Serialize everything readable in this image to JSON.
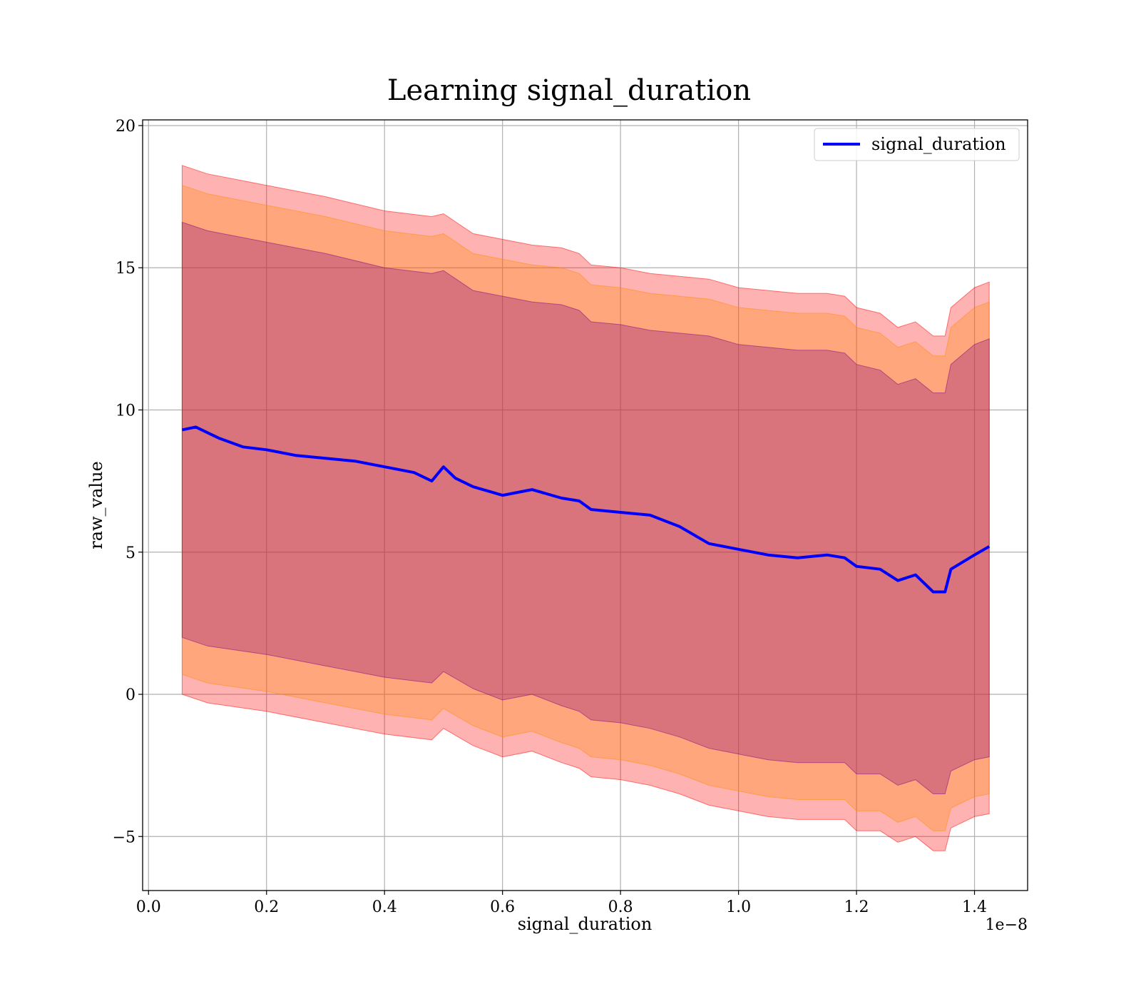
{
  "chart_data": {
    "type": "line",
    "title": "Learning signal_duration",
    "xlabel": "signal_duration",
    "ylabel": "raw_value",
    "x_offset_label": "1e−8",
    "xlim": [
      -0.01,
      1.49
    ],
    "ylim": [
      -6.9,
      20.2
    ],
    "xticks": [
      0.0,
      0.2,
      0.4,
      0.6,
      0.8,
      1.0,
      1.2,
      1.4
    ],
    "xtick_labels": [
      "0.0",
      "0.2",
      "0.4",
      "0.6",
      "0.8",
      "1.0",
      "1.2",
      "1.4"
    ],
    "yticks": [
      -5,
      0,
      5,
      10,
      15,
      20
    ],
    "ytick_labels": [
      "−5",
      "0",
      "5",
      "10",
      "15",
      "20"
    ],
    "grid": true,
    "legend": {
      "position": "top-right",
      "entries": [
        "signal_duration"
      ]
    },
    "series": [
      {
        "name": "signal_duration",
        "color": "#0000ff",
        "x": [
          0.057,
          0.08,
          0.12,
          0.16,
          0.2,
          0.25,
          0.3,
          0.35,
          0.4,
          0.45,
          0.48,
          0.5,
          0.52,
          0.55,
          0.6,
          0.65,
          0.7,
          0.73,
          0.75,
          0.8,
          0.85,
          0.9,
          0.95,
          1.0,
          1.05,
          1.1,
          1.15,
          1.18,
          1.2,
          1.24,
          1.27,
          1.3,
          1.33,
          1.35,
          1.36,
          1.4,
          1.425
        ],
        "values": [
          9.3,
          9.4,
          9.0,
          8.7,
          8.6,
          8.4,
          8.3,
          8.2,
          8.0,
          7.8,
          7.5,
          8.0,
          7.6,
          7.3,
          7.0,
          7.2,
          6.9,
          6.8,
          6.5,
          6.4,
          6.3,
          5.9,
          5.3,
          5.1,
          4.9,
          4.8,
          4.9,
          4.8,
          4.5,
          4.4,
          4.0,
          4.2,
          3.6,
          3.6,
          4.4,
          4.9,
          5.2
        ]
      }
    ],
    "bands": [
      {
        "color": "#ff0000",
        "opacity": 0.3,
        "x": [
          0.057,
          0.1,
          0.2,
          0.3,
          0.4,
          0.48,
          0.5,
          0.55,
          0.6,
          0.65,
          0.7,
          0.73,
          0.75,
          0.8,
          0.85,
          0.9,
          0.95,
          1.0,
          1.05,
          1.1,
          1.15,
          1.18,
          1.2,
          1.24,
          1.27,
          1.3,
          1.33,
          1.35,
          1.36,
          1.4,
          1.425
        ],
        "upper": [
          18.6,
          18.3,
          17.9,
          17.5,
          17.0,
          16.8,
          16.9,
          16.2,
          16.0,
          15.8,
          15.7,
          15.5,
          15.1,
          15.0,
          14.8,
          14.7,
          14.6,
          14.3,
          14.2,
          14.1,
          14.1,
          14.0,
          13.6,
          13.4,
          12.9,
          13.1,
          12.6,
          12.6,
          13.6,
          14.3,
          14.5
        ],
        "lower": [
          0.0,
          -0.3,
          -0.6,
          -1.0,
          -1.4,
          -1.6,
          -1.2,
          -1.8,
          -2.2,
          -2.0,
          -2.4,
          -2.6,
          -2.9,
          -3.0,
          -3.2,
          -3.5,
          -3.9,
          -4.1,
          -4.3,
          -4.4,
          -4.4,
          -4.4,
          -4.8,
          -4.8,
          -5.2,
          -5.0,
          -5.5,
          -5.5,
          -4.7,
          -4.3,
          -4.2
        ]
      },
      {
        "color": "#ff8c00",
        "opacity": 0.3,
        "x": [
          0.057,
          0.1,
          0.2,
          0.3,
          0.4,
          0.48,
          0.5,
          0.55,
          0.6,
          0.65,
          0.7,
          0.73,
          0.75,
          0.8,
          0.85,
          0.9,
          0.95,
          1.0,
          1.05,
          1.1,
          1.15,
          1.18,
          1.2,
          1.24,
          1.27,
          1.3,
          1.33,
          1.35,
          1.36,
          1.4,
          1.425
        ],
        "upper": [
          17.9,
          17.6,
          17.2,
          16.8,
          16.3,
          16.1,
          16.2,
          15.5,
          15.3,
          15.1,
          15.0,
          14.8,
          14.4,
          14.3,
          14.1,
          14.0,
          13.9,
          13.6,
          13.5,
          13.4,
          13.4,
          13.3,
          12.9,
          12.7,
          12.2,
          12.4,
          11.9,
          11.9,
          12.9,
          13.6,
          13.8
        ],
        "lower": [
          0.7,
          0.4,
          0.1,
          -0.3,
          -0.7,
          -0.9,
          -0.5,
          -1.1,
          -1.5,
          -1.3,
          -1.7,
          -1.9,
          -2.2,
          -2.3,
          -2.5,
          -2.8,
          -3.2,
          -3.4,
          -3.6,
          -3.7,
          -3.7,
          -3.7,
          -4.1,
          -4.1,
          -4.5,
          -4.3,
          -4.8,
          -4.8,
          -4.0,
          -3.6,
          -3.5
        ]
      },
      {
        "color": "#800080",
        "opacity": 0.3,
        "x": [
          0.057,
          0.1,
          0.2,
          0.3,
          0.4,
          0.48,
          0.5,
          0.55,
          0.6,
          0.65,
          0.7,
          0.73,
          0.75,
          0.8,
          0.85,
          0.9,
          0.95,
          1.0,
          1.05,
          1.1,
          1.15,
          1.18,
          1.2,
          1.24,
          1.27,
          1.3,
          1.33,
          1.35,
          1.36,
          1.4,
          1.425
        ],
        "upper": [
          16.6,
          16.3,
          15.9,
          15.5,
          15.0,
          14.8,
          14.9,
          14.2,
          14.0,
          13.8,
          13.7,
          13.5,
          13.1,
          13.0,
          12.8,
          12.7,
          12.6,
          12.3,
          12.2,
          12.1,
          12.1,
          12.0,
          11.6,
          11.4,
          10.9,
          11.1,
          10.6,
          10.6,
          11.6,
          12.3,
          12.5
        ],
        "lower": [
          2.0,
          1.7,
          1.4,
          1.0,
          0.6,
          0.4,
          0.8,
          0.2,
          -0.2,
          0.0,
          -0.4,
          -0.6,
          -0.9,
          -1.0,
          -1.2,
          -1.5,
          -1.9,
          -2.1,
          -2.3,
          -2.4,
          -2.4,
          -2.4,
          -2.8,
          -2.8,
          -3.2,
          -3.0,
          -3.5,
          -3.5,
          -2.7,
          -2.3,
          -2.2
        ]
      }
    ]
  }
}
